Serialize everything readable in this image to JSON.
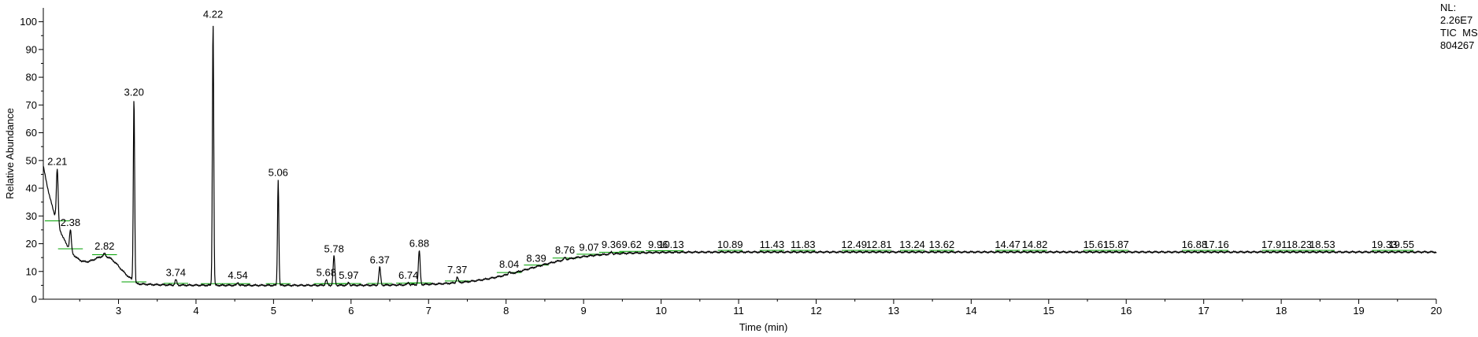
{
  "chart_data": {
    "type": "line",
    "title": "",
    "xlabel": "Time (min)",
    "ylabel": "Relative Abundance",
    "xlim": [
      2.03,
      20.0
    ],
    "ylim": [
      0,
      105
    ],
    "x_ticks": [
      "3",
      "4",
      "5",
      "6",
      "7",
      "8",
      "9",
      "10",
      "11",
      "12",
      "13",
      "14",
      "15",
      "16",
      "17",
      "18",
      "19",
      "20"
    ],
    "y_ticks": [
      "0",
      "10",
      "20",
      "30",
      "40",
      "50",
      "60",
      "70",
      "80",
      "90",
      "100"
    ],
    "grid": false,
    "line_color": "#000000",
    "baseline_color": "#00a000",
    "peaks": [
      {
        "x": 2.21,
        "label": "2.21",
        "y": 47
      },
      {
        "x": 2.38,
        "label": "2.38",
        "y": 25
      },
      {
        "x": 2.82,
        "label": "2.82",
        "y": 16.5
      },
      {
        "x": 3.2,
        "label": "3.20",
        "y": 72
      },
      {
        "x": 3.74,
        "label": "3.74",
        "y": 7
      },
      {
        "x": 4.22,
        "label": "4.22",
        "y": 100
      },
      {
        "x": 4.54,
        "label": "4.54",
        "y": 6
      },
      {
        "x": 5.06,
        "label": "5.06",
        "y": 43
      },
      {
        "x": 5.68,
        "label": "5.68",
        "y": 7
      },
      {
        "x": 5.78,
        "label": "5.78",
        "y": 15.5
      },
      {
        "x": 5.97,
        "label": "5.97",
        "y": 6
      },
      {
        "x": 6.37,
        "label": "6.37",
        "y": 11.5
      },
      {
        "x": 6.74,
        "label": "6.74",
        "y": 6
      },
      {
        "x": 6.88,
        "label": "6.88",
        "y": 17.5
      },
      {
        "x": 7.37,
        "label": "7.37",
        "y": 8
      },
      {
        "x": 8.04,
        "label": "8.04",
        "y": 10
      },
      {
        "x": 8.39,
        "label": "8.39",
        "y": 12
      },
      {
        "x": 8.76,
        "label": "8.76",
        "y": 15
      },
      {
        "x": 9.07,
        "label": "9.07",
        "y": 16
      },
      {
        "x": 9.36,
        "label": "9.36",
        "y": 17
      },
      {
        "x": 9.62,
        "label": "9.62",
        "y": 17
      },
      {
        "x": 9.96,
        "label": "9.96",
        "y": 17
      },
      {
        "x": 10.13,
        "label": "10.13",
        "y": 17
      },
      {
        "x": 10.89,
        "label": "10.89",
        "y": 17
      },
      {
        "x": 11.43,
        "label": "11.43",
        "y": 17
      },
      {
        "x": 11.83,
        "label": "11.83",
        "y": 17
      },
      {
        "x": 12.49,
        "label": "12.49",
        "y": 17
      },
      {
        "x": 12.81,
        "label": "12.81",
        "y": 17
      },
      {
        "x": 13.24,
        "label": "13.24",
        "y": 17
      },
      {
        "x": 13.62,
        "label": "13.62",
        "y": 17
      },
      {
        "x": 14.47,
        "label": "14.47",
        "y": 17
      },
      {
        "x": 14.82,
        "label": "14.82",
        "y": 17
      },
      {
        "x": 15.61,
        "label": "15.61",
        "y": 17
      },
      {
        "x": 15.87,
        "label": "15.87",
        "y": 17
      },
      {
        "x": 16.88,
        "label": "16.88",
        "y": 17
      },
      {
        "x": 17.16,
        "label": "17.16",
        "y": 17
      },
      {
        "x": 17.91,
        "label": "17.91",
        "y": 17
      },
      {
        "x": 18.23,
        "label": "18.23",
        "y": 17
      },
      {
        "x": 18.53,
        "label": "18.53",
        "y": 17
      },
      {
        "x": 19.33,
        "label": "19.33",
        "y": 17
      },
      {
        "x": 19.55,
        "label": "19.55",
        "y": 17
      }
    ]
  },
  "info": {
    "nl_label": "NL:",
    "nl_value": "2.26E7",
    "trace": "TIC  MS",
    "file_id": "804267"
  }
}
